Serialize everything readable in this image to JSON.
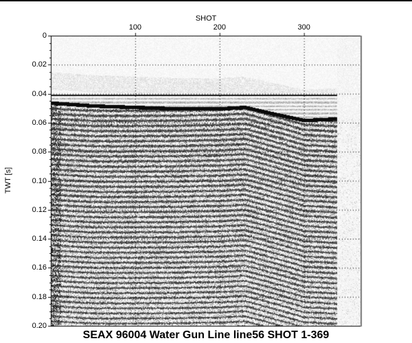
{
  "chart_data": {
    "type": "heatmap",
    "title": "SEAX 96004 Water Gun Line line56 SHOT 1-369",
    "xlabel": "SHOT",
    "ylabel": "TWT [s]",
    "xlim": [
      0,
      367
    ],
    "ylim": [
      0.2,
      0
    ],
    "x_axis_position": "top",
    "x_ticks": [
      100,
      200,
      300
    ],
    "y_ticks": [
      0,
      0.02,
      0.04,
      0.06,
      0.08,
      0.1,
      0.12,
      0.14,
      0.16,
      0.18,
      0.2
    ],
    "y_tick_labels": [
      "0",
      "0.02",
      "0.04",
      "0.06",
      "0.08",
      "0.10",
      "0.12",
      "0.14",
      "0.16",
      "0.18",
      "0.20"
    ],
    "grid": "dotted",
    "colormap": "grayscale",
    "data_shot_range": [
      1,
      339
    ],
    "direct_arrival_twt": 0.041,
    "seafloor_horizon": {
      "shot": [
        0,
        50,
        100,
        150,
        200,
        230,
        260,
        300,
        339
      ],
      "twt": [
        0.046,
        0.048,
        0.049,
        0.05,
        0.05,
        0.049,
        0.053,
        0.058,
        0.057
      ]
    }
  }
}
